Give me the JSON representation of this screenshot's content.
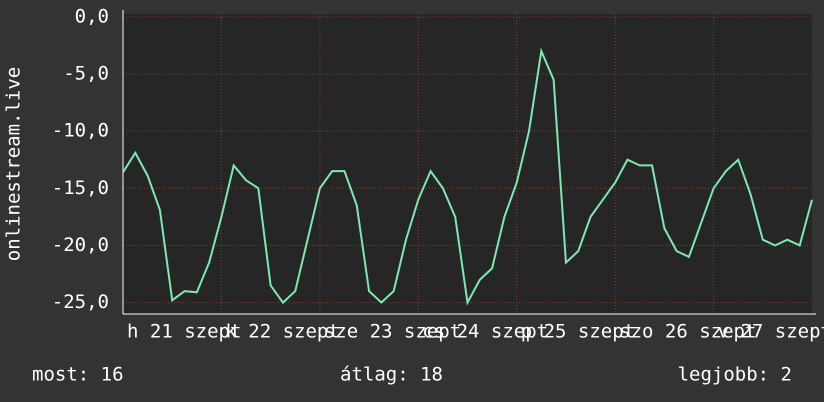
{
  "chart_data": {
    "type": "line",
    "y_label": "onlinestream.live",
    "x": [
      0,
      3,
      6,
      9,
      12,
      15,
      18,
      21,
      24,
      27,
      30,
      33,
      36,
      39,
      42,
      45,
      48,
      51,
      54,
      57,
      60,
      63,
      66,
      69,
      72,
      75,
      78,
      81,
      84,
      87,
      90,
      93,
      96,
      99,
      102,
      105,
      108,
      111,
      114,
      117,
      120,
      123,
      126,
      129,
      132,
      135,
      138,
      141,
      144,
      147,
      150,
      153,
      156,
      159,
      162,
      165,
      168
    ],
    "series": [
      {
        "name": "onlinestream.live",
        "color": "#7ee8b0",
        "values": [
          -13.6,
          -11.9,
          -13.9,
          -16.9,
          -24.8,
          -24,
          -24.1,
          -21.5,
          -17.5,
          -13,
          -14.3,
          -15,
          -23.5,
          -25,
          -24,
          -19.5,
          -15,
          -13.5,
          -13.5,
          -16.5,
          -24,
          -25,
          -24,
          -19.5,
          -16,
          -13.5,
          -15,
          -17.5,
          -25,
          -23,
          -22,
          -17.5,
          -14.5,
          -10,
          -3,
          -5.5,
          -21.5,
          -20.5,
          -17.5,
          -16,
          -14.5,
          -12.5,
          -13,
          -13,
          -18.5,
          -20.5,
          -21,
          -18,
          -15,
          -13.5,
          -12.5,
          -15.5,
          -19.5,
          -20,
          -19.5,
          -20,
          -16
        ]
      }
    ],
    "xlim": [
      0,
      168
    ],
    "xticks": [
      {
        "value": 0,
        "label": "h 21 szept"
      },
      {
        "value": 24,
        "label": "k 22 szept"
      },
      {
        "value": 48,
        "label": "sze 23 szept"
      },
      {
        "value": 72,
        "label": "cs 24 szept"
      },
      {
        "value": 96,
        "label": "p 25 szept"
      },
      {
        "value": 120,
        "label": "szo 26 szept"
      },
      {
        "value": 144,
        "label": "v 27 szept"
      }
    ],
    "ylim": [
      -26,
      0.25
    ],
    "yticks": [
      {
        "value": -25,
        "label": "-25,0"
      },
      {
        "value": -20,
        "label": "-20,0"
      },
      {
        "value": -15,
        "label": "-15,0"
      },
      {
        "value": -10,
        "label": "-10,0"
      },
      {
        "value": -5,
        "label": "-5,0"
      },
      {
        "value": 0,
        "label": "0,0"
      }
    ],
    "grid": true,
    "footer": [
      "most: 16",
      "átlag: 18",
      "legjobb: 2"
    ]
  }
}
